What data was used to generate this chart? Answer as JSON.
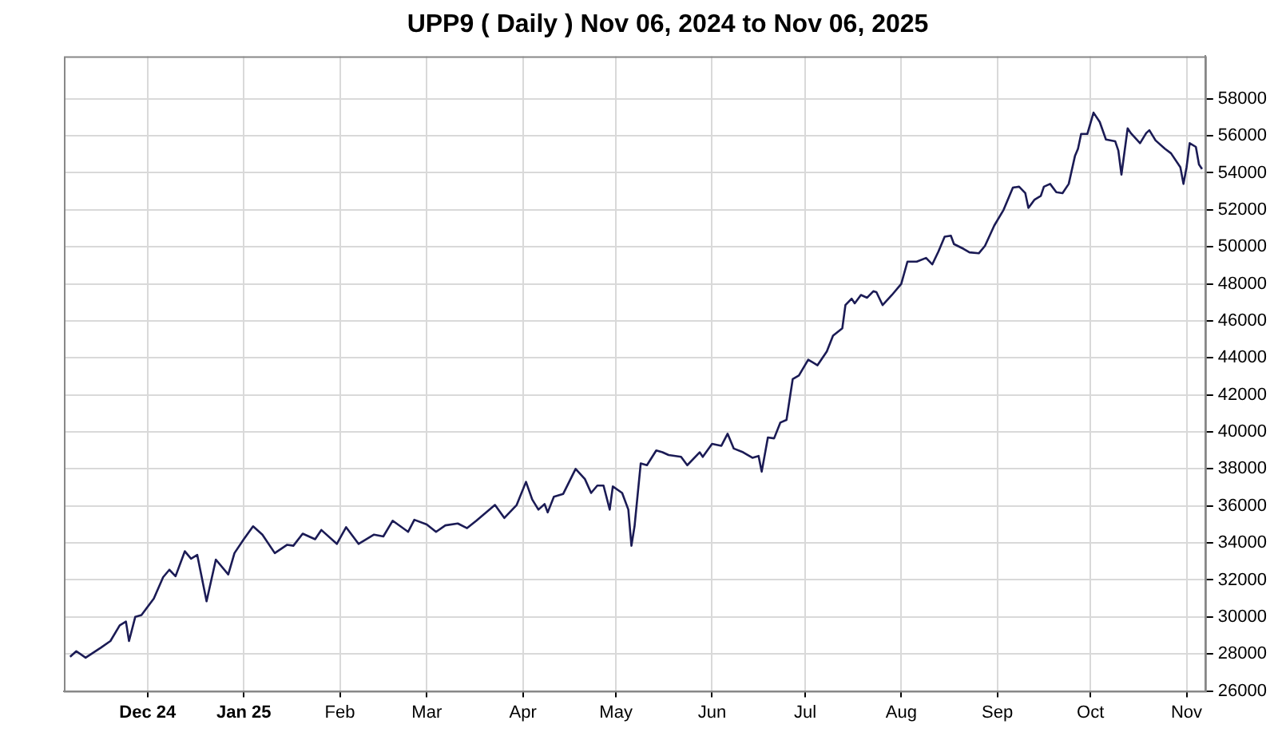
{
  "chart_data": {
    "type": "line",
    "title": "UPP9 ( Daily ) Nov 06, 2024 to Nov 06, 2025",
    "x": [
      "2024-11-06",
      "2024-11-08",
      "2024-11-11",
      "2024-11-16",
      "2024-11-19",
      "2024-11-22",
      "2024-11-24",
      "2024-11-25",
      "2024-11-27",
      "2024-11-29",
      "2024-12-03",
      "2024-12-06",
      "2024-12-08",
      "2024-12-10",
      "2024-12-13",
      "2024-12-15",
      "2024-12-17",
      "2024-12-20",
      "2024-12-23",
      "2024-12-27",
      "2024-12-29",
      "2025-01-01",
      "2025-01-04",
      "2025-01-07",
      "2025-01-11",
      "2025-01-15",
      "2025-01-17",
      "2025-01-20",
      "2025-01-24",
      "2025-01-26",
      "2025-01-31",
      "2025-02-03",
      "2025-02-07",
      "2025-02-12",
      "2025-02-15",
      "2025-02-18",
      "2025-02-23",
      "2025-02-25",
      "2025-03-01",
      "2025-03-04",
      "2025-03-07",
      "2025-03-11",
      "2025-03-14",
      "2025-03-17",
      "2025-03-23",
      "2025-03-26",
      "2025-03-30",
      "2025-04-02",
      "2025-04-04",
      "2025-04-06",
      "2025-04-08",
      "2025-04-09",
      "2025-04-11",
      "2025-04-14",
      "2025-04-18",
      "2025-04-21",
      "2025-04-23",
      "2025-04-25",
      "2025-04-27",
      "2025-04-29",
      "2025-04-30",
      "2025-05-03",
      "2025-05-05",
      "2025-05-06",
      "2025-05-07",
      "2025-05-09",
      "2025-05-11",
      "2025-05-14",
      "2025-05-16",
      "2025-05-18",
      "2025-05-22",
      "2025-05-24",
      "2025-05-28",
      "2025-05-29",
      "2025-06-01",
      "2025-06-04",
      "2025-06-06",
      "2025-06-08",
      "2025-06-11",
      "2025-06-14",
      "2025-06-16",
      "2025-06-17",
      "2025-06-19",
      "2025-06-21",
      "2025-06-23",
      "2025-06-25",
      "2025-06-27",
      "2025-06-29",
      "2025-07-02",
      "2025-07-05",
      "2025-07-08",
      "2025-07-10",
      "2025-07-13",
      "2025-07-14",
      "2025-07-16",
      "2025-07-17",
      "2025-07-19",
      "2025-07-21",
      "2025-07-23",
      "2025-07-24",
      "2025-07-26",
      "2025-07-29",
      "2025-08-01",
      "2025-08-03",
      "2025-08-06",
      "2025-08-09",
      "2025-08-11",
      "2025-08-13",
      "2025-08-15",
      "2025-08-17",
      "2025-08-18",
      "2025-08-21",
      "2025-08-23",
      "2025-08-26",
      "2025-08-28",
      "2025-08-31",
      "2025-09-03",
      "2025-09-06",
      "2025-09-08",
      "2025-09-10",
      "2025-09-11",
      "2025-09-13",
      "2025-09-15",
      "2025-09-16",
      "2025-09-18",
      "2025-09-20",
      "2025-09-22",
      "2025-09-24",
      "2025-09-26",
      "2025-09-27",
      "2025-09-28",
      "2025-09-30",
      "2025-10-02",
      "2025-10-04",
      "2025-10-06",
      "2025-10-09",
      "2025-10-10",
      "2025-10-11",
      "2025-10-13",
      "2025-10-14",
      "2025-10-17",
      "2025-10-19",
      "2025-10-20",
      "2025-10-22",
      "2025-10-25",
      "2025-10-27",
      "2025-10-30",
      "2025-10-31",
      "2025-11-01",
      "2025-11-02",
      "2025-11-04",
      "2025-11-05",
      "2025-11-06"
    ],
    "series": [
      {
        "color": "#1b1b55",
        "values": [
          27850,
          28150,
          27800,
          28350,
          28700,
          29550,
          29750,
          28700,
          30000,
          30100,
          31000,
          32150,
          32550,
          32200,
          33550,
          33150,
          33350,
          30850,
          33100,
          32300,
          33450,
          34200,
          34900,
          34450,
          33450,
          33900,
          33850,
          34500,
          34200,
          34700,
          33950,
          34850,
          33950,
          34450,
          34350,
          35200,
          34600,
          35250,
          35000,
          34600,
          34950,
          35050,
          34800,
          35200,
          36050,
          35350,
          36050,
          37300,
          36350,
          35800,
          36100,
          35650,
          36500,
          36650,
          38000,
          37450,
          36700,
          37100,
          37100,
          35800,
          37050,
          36700,
          35800,
          33850,
          34900,
          38300,
          38200,
          39000,
          38900,
          38750,
          38650,
          38200,
          38900,
          38650,
          39350,
          39250,
          39900,
          39100,
          38900,
          38600,
          38700,
          37850,
          39700,
          39650,
          40500,
          40650,
          42850,
          43050,
          43900,
          43600,
          44350,
          45200,
          45600,
          46850,
          47200,
          46950,
          47400,
          47250,
          47600,
          47550,
          46850,
          47400,
          48000,
          49200,
          49200,
          49400,
          49050,
          49750,
          50550,
          50600,
          50150,
          49900,
          49700,
          49650,
          50050,
          51150,
          52000,
          53200,
          53250,
          52900,
          52100,
          52550,
          52750,
          53250,
          53400,
          52950,
          52900,
          53400,
          54900,
          55300,
          56100,
          56100,
          57250,
          56750,
          55800,
          55700,
          55200,
          53900,
          56400,
          56150,
          55600,
          56150,
          56300,
          55750,
          55300,
          55050,
          54300,
          53400,
          54300,
          55600,
          55400,
          54450,
          54200
        ]
      }
    ],
    "xlim": [
      "2024-11-04",
      "2025-11-07"
    ],
    "xticks": [
      {
        "value": "2024-12-01",
        "label": "Dec 24"
      },
      {
        "value": "2025-01-01",
        "label": "Jan 25"
      },
      {
        "value": "2025-02-01",
        "label": "Feb"
      },
      {
        "value": "2025-03-01",
        "label": "Mar"
      },
      {
        "value": "2025-04-01",
        "label": "Apr"
      },
      {
        "value": "2025-05-01",
        "label": "May"
      },
      {
        "value": "2025-06-01",
        "label": "Jun"
      },
      {
        "value": "2025-07-01",
        "label": "Jul"
      },
      {
        "value": "2025-08-01",
        "label": "Aug"
      },
      {
        "value": "2025-09-01",
        "label": "Sep"
      },
      {
        "value": "2025-10-01",
        "label": "Oct"
      },
      {
        "value": "2025-11-01",
        "label": "Nov"
      }
    ],
    "ylim": [
      26000,
      60300
    ],
    "yticks": [
      26000,
      28000,
      30000,
      32000,
      34000,
      36000,
      38000,
      40000,
      42000,
      44000,
      46000,
      48000,
      50000,
      52000,
      54000,
      56000,
      58000
    ],
    "grid": true,
    "legend": false
  }
}
